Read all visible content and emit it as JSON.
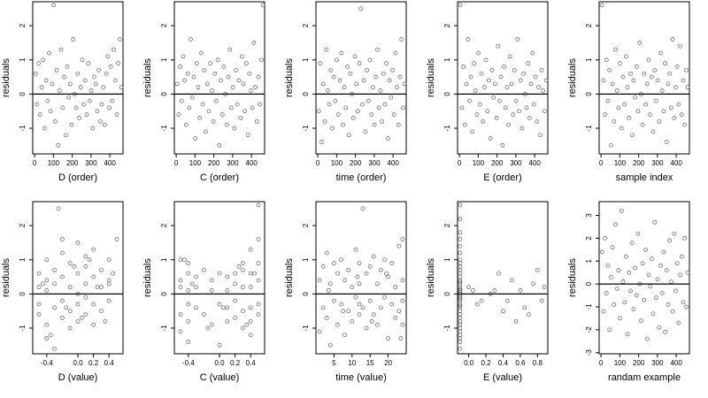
{
  "figure": {
    "background": "#ffffff",
    "point_color": "#555555",
    "axis_color": "#000000"
  },
  "chart_data": [
    {
      "type": "scatter",
      "xlabel": "D (order)",
      "ylabel": "residuals",
      "xlim": [
        -10,
        470
      ],
      "ylim": [
        -1.75,
        2.7
      ],
      "xticks": [
        0,
        100,
        200,
        300,
        400
      ],
      "yticks": [
        -1,
        0,
        1,
        2
      ],
      "hline": 0,
      "x": [
        5,
        13,
        21,
        29,
        37,
        45,
        53,
        61,
        69,
        77,
        85,
        93,
        101,
        109,
        117,
        125,
        133,
        141,
        149,
        157,
        165,
        173,
        181,
        189,
        197,
        205,
        213,
        221,
        229,
        237,
        245,
        253,
        261,
        269,
        277,
        285,
        293,
        301,
        309,
        317,
        325,
        333,
        341,
        349,
        357,
        365,
        373,
        381,
        389,
        397,
        405,
        413,
        421,
        429,
        437,
        445,
        453,
        461
      ],
      "y": [
        0.6,
        -0.3,
        0.9,
        -0.6,
        0.2,
        1.0,
        -1.0,
        0.4,
        -0.2,
        1.2,
        -0.5,
        0.3,
        2.6,
        -0.8,
        0.7,
        -1.5,
        0.1,
        1.3,
        -0.4,
        0.5,
        -1.2,
        0.8,
        -0.1,
        0.3,
        -0.9,
        1.6,
        0.0,
        -0.4,
        0.6,
        -0.7,
        0.2,
        1.0,
        -0.3,
        0.4,
        -0.6,
        0.9,
        -0.2,
        0.1,
        -1.0,
        0.5,
        0.3,
        -0.5,
        0.7,
        -0.8,
        -0.3,
        0.2,
        -0.9,
        0.6,
        1.1,
        -0.4,
        0.8,
        -0.2,
        1.3,
        0.4,
        -0.6,
        0.9,
        1.6,
        0.2
      ]
    },
    {
      "type": "scatter",
      "xlabel": "C (order)",
      "ylabel": "residuals",
      "xlim": [
        -10,
        470
      ],
      "ylim": [
        -1.75,
        2.7
      ],
      "xticks": [
        0,
        100,
        200,
        300,
        400
      ],
      "yticks": [
        -1,
        0,
        1,
        2
      ],
      "hline": 0,
      "x": [
        5,
        13,
        21,
        29,
        37,
        45,
        53,
        61,
        69,
        77,
        85,
        93,
        101,
        109,
        117,
        125,
        133,
        141,
        149,
        157,
        165,
        173,
        181,
        189,
        197,
        205,
        213,
        221,
        229,
        237,
        245,
        253,
        261,
        269,
        277,
        285,
        293,
        301,
        309,
        317,
        325,
        333,
        341,
        349,
        357,
        365,
        373,
        381,
        389,
        397,
        405,
        413,
        421,
        429,
        437,
        445,
        453,
        461
      ],
      "y": [
        0.3,
        -0.6,
        0.8,
        -0.2,
        1.1,
        0.4,
        -0.9,
        0.6,
        -0.4,
        1.6,
        -0.1,
        0.5,
        -1.3,
        0.9,
        0.2,
        -0.7,
        1.2,
        -0.3,
        0.7,
        -1.1,
        0.3,
        -0.5,
        0.9,
        0.1,
        -0.8,
        0.6,
        -0.2,
        1.0,
        -1.5,
        0.4,
        -0.6,
        0.8,
        0.0,
        -0.9,
        0.5,
        1.3,
        -0.4,
        0.2,
        -1.0,
        0.7,
        -0.3,
        0.4,
        -0.7,
        1.1,
        0.3,
        -0.5,
        0.9,
        -1.2,
        0.6,
        0.1,
        -0.4,
        1.5,
        0.2,
        -0.8,
        0.5,
        -0.3,
        1.0,
        2.6
      ]
    },
    {
      "type": "scatter",
      "xlabel": "time (order)",
      "ylabel": "residuals",
      "xlim": [
        -10,
        470
      ],
      "ylim": [
        -1.75,
        2.7
      ],
      "xticks": [
        0,
        100,
        200,
        300,
        400
      ],
      "yticks": [
        -1,
        0,
        1,
        2
      ],
      "hline": 0,
      "x": [
        5,
        13,
        21,
        29,
        37,
        45,
        53,
        61,
        69,
        77,
        85,
        93,
        101,
        109,
        117,
        125,
        133,
        141,
        149,
        157,
        165,
        173,
        181,
        189,
        197,
        205,
        213,
        221,
        229,
        237,
        245,
        253,
        261,
        269,
        277,
        285,
        293,
        301,
        309,
        317,
        325,
        333,
        341,
        349,
        357,
        365,
        373,
        381,
        389,
        397,
        405,
        413,
        421,
        429,
        437,
        445,
        453,
        461
      ],
      "y": [
        -0.5,
        0.9,
        -1.4,
        0.3,
        -0.8,
        1.3,
        0.1,
        -0.3,
        0.7,
        -1.0,
        0.5,
        -0.2,
        1.0,
        -0.6,
        0.4,
        1.2,
        -0.9,
        0.2,
        -0.4,
        0.8,
        -1.2,
        0.6,
        0.0,
        -0.7,
        1.1,
        0.3,
        -0.5,
        0.9,
        2.5,
        -0.3,
        0.4,
        -1.1,
        0.7,
        -0.2,
        1.0,
        -0.6,
        0.2,
        -0.9,
        0.5,
        1.3,
        -0.4,
        0.1,
        -0.8,
        0.6,
        -0.3,
        0.9,
        -1.3,
        0.4,
        -0.1,
        0.7,
        -0.6,
        1.2,
        0.2,
        -0.9,
        0.5,
        1.6,
        -0.4,
        0.3
      ]
    },
    {
      "type": "scatter",
      "xlabel": "E (order)",
      "ylabel": "residuals",
      "xlim": [
        -10,
        470
      ],
      "ylim": [
        -1.75,
        2.7
      ],
      "xticks": [
        0,
        100,
        200,
        300,
        400
      ],
      "yticks": [
        -1,
        0,
        1,
        2
      ],
      "hline": 0,
      "x": [
        5,
        13,
        21,
        29,
        37,
        45,
        53,
        61,
        69,
        77,
        85,
        93,
        101,
        109,
        117,
        125,
        133,
        141,
        149,
        157,
        165,
        173,
        181,
        189,
        197,
        205,
        213,
        221,
        229,
        237,
        245,
        253,
        261,
        269,
        277,
        285,
        293,
        301,
        309,
        317,
        325,
        333,
        341,
        349,
        357,
        365,
        373,
        381,
        389,
        397,
        405,
        413,
        421,
        429,
        437,
        445,
        453,
        461
      ],
      "y": [
        2.6,
        -0.4,
        0.8,
        -0.9,
        0.3,
        1.6,
        -0.2,
        0.5,
        -1.1,
        0.9,
        0.1,
        -0.6,
        1.2,
        -0.3,
        0.6,
        -0.8,
        0.2,
        1.0,
        -0.5,
        0.4,
        -1.3,
        0.7,
        -0.1,
        0.3,
        -0.7,
        1.4,
        -0.2,
        0.5,
        -1.5,
        0.8,
        -0.4,
        0.2,
        -0.9,
        1.1,
        0.3,
        -0.6,
        0.7,
        -0.2,
        1.6,
        -0.5,
        0.4,
        -1.0,
        0.6,
        0.0,
        -0.4,
        0.9,
        -0.7,
        0.3,
        1.2,
        -0.3,
        0.5,
        -0.8,
        0.2,
        -1.2,
        0.7,
        0.1,
        -0.5,
        0.4
      ]
    },
    {
      "type": "scatter",
      "xlabel": "sample index",
      "ylabel": "residuals",
      "xlim": [
        -10,
        470
      ],
      "ylim": [
        -1.75,
        2.7
      ],
      "xticks": [
        0,
        100,
        200,
        300,
        400
      ],
      "yticks": [
        -1,
        0,
        1,
        2
      ],
      "hline": 0,
      "x": [
        5,
        13,
        21,
        29,
        37,
        45,
        53,
        61,
        69,
        77,
        85,
        93,
        101,
        109,
        117,
        125,
        133,
        141,
        149,
        157,
        165,
        173,
        181,
        189,
        197,
        205,
        213,
        221,
        229,
        237,
        245,
        253,
        261,
        269,
        277,
        285,
        293,
        301,
        309,
        317,
        325,
        333,
        341,
        349,
        357,
        365,
        373,
        381,
        389,
        397,
        405,
        413,
        421,
        429,
        437,
        445,
        453,
        461
      ],
      "y": [
        2.6,
        0.4,
        -0.6,
        1.0,
        -0.2,
        0.7,
        -1.5,
        0.3,
        -0.8,
        1.3,
        0.1,
        -0.4,
        0.9,
        -1.0,
        0.5,
        -0.3,
        1.1,
        0.2,
        -0.7,
        0.6,
        -1.2,
        0.4,
        -0.1,
        0.8,
        -0.5,
        1.5,
        0.0,
        -0.9,
        0.6,
        -0.3,
        0.3,
        1.0,
        -0.6,
        0.5,
        -1.1,
        0.7,
        -0.2,
        0.4,
        -0.8,
        1.2,
        0.1,
        -0.5,
        0.9,
        -1.4,
        0.3,
        0.6,
        -0.4,
        1.6,
        -0.7,
        0.2,
        0.8,
        -0.3,
        1.4,
        -0.6,
        0.4,
        -0.9,
        0.7,
        0.2
      ]
    },
    {
      "type": "scatter",
      "xlabel": "D (value)",
      "ylabel": "residuals",
      "xlim": [
        -0.58,
        0.58
      ],
      "ylim": [
        -1.75,
        2.7
      ],
      "xticks": [
        -0.4,
        0.0,
        0.2,
        0.4
      ],
      "xticklabels": [
        "-0.4",
        "0.0",
        "0.2",
        "0.4"
      ],
      "yticks": [
        -1,
        0,
        1,
        2
      ],
      "hline": 0,
      "x": [
        -0.5,
        -0.5,
        -0.5,
        -0.5,
        -0.4,
        -0.4,
        -0.4,
        -0.4,
        -0.4,
        -0.3,
        -0.3,
        -0.3,
        -0.3,
        -0.2,
        -0.2,
        -0.2,
        -0.2,
        -0.2,
        -0.1,
        -0.1,
        -0.1,
        -0.1,
        0.0,
        0.0,
        0.0,
        0.0,
        0.0,
        0.1,
        0.1,
        0.1,
        0.1,
        0.1,
        0.2,
        0.2,
        0.2,
        0.2,
        0.3,
        0.3,
        0.3,
        0.4,
        0.4,
        0.4,
        0.4,
        0.5,
        -0.45,
        -0.35,
        -0.25,
        -0.15,
        -0.05,
        0.05,
        0.15,
        0.25,
        0.35,
        0.45
      ],
      "y": [
        0.6,
        -0.3,
        0.2,
        -0.6,
        1.0,
        -0.9,
        0.4,
        -1.3,
        0.1,
        0.7,
        -0.4,
        -1.6,
        0.3,
        1.2,
        -0.7,
        0.5,
        -0.2,
        1.6,
        0.9,
        -0.5,
        0.2,
        -1.0,
        0.6,
        -0.3,
        1.5,
        -0.8,
        0.0,
        0.8,
        -0.6,
        0.3,
        -0.1,
        1.1,
        0.5,
        -0.9,
        -0.3,
        1.3,
        0.7,
        -0.5,
        0.2,
        0.4,
        -0.2,
        1.0,
        0.3,
        1.6,
        0.3,
        -1.2,
        2.5,
        -0.4,
        0.8,
        -0.7,
        1.0,
        0.2,
        -0.8,
        0.6
      ]
    },
    {
      "type": "scatter",
      "xlabel": "C (value)",
      "ylabel": "residuals",
      "xlim": [
        -0.58,
        0.58
      ],
      "ylim": [
        -1.75,
        2.7
      ],
      "xticks": [
        -0.4,
        0.0,
        0.2,
        0.4
      ],
      "xticklabels": [
        "-0.4",
        "0.0",
        "0.2",
        "0.4"
      ],
      "yticks": [
        -1,
        0,
        1,
        2
      ],
      "hline": 0,
      "x": [
        -0.5,
        -0.5,
        -0.5,
        -0.5,
        -0.5,
        -0.4,
        -0.4,
        -0.4,
        -0.4,
        -0.4,
        -0.4,
        -0.3,
        -0.3,
        -0.3,
        -0.2,
        -0.2,
        -0.1,
        -0.1,
        -0.1,
        0.0,
        0.0,
        0.0,
        0.1,
        0.1,
        0.1,
        0.1,
        0.2,
        0.2,
        0.2,
        0.2,
        0.3,
        0.3,
        0.3,
        0.3,
        0.3,
        0.4,
        0.4,
        0.4,
        0.4,
        0.4,
        0.4,
        0.5,
        0.5,
        0.5,
        0.5,
        0.5,
        -0.45,
        -0.35,
        -0.15,
        0.05,
        0.25,
        0.35,
        0.45,
        0.5
      ],
      "y": [
        1.0,
        -0.6,
        0.4,
        -1.1,
        0.2,
        0.9,
        -0.3,
        0.6,
        -1.4,
        0.1,
        -0.8,
        0.5,
        -0.4,
        0.2,
        0.7,
        -0.6,
        0.4,
        -0.9,
        0.1,
        0.6,
        -0.3,
        -1.5,
        0.5,
        -0.4,
        0.1,
        -0.8,
        0.6,
        -0.2,
        0.3,
        -0.7,
        0.9,
        -0.5,
        0.2,
        -1.0,
        0.7,
        1.3,
        -0.4,
        0.6,
        -0.8,
        0.2,
        -1.2,
        1.6,
        -0.3,
        0.4,
        0.9,
        -0.6,
        1.0,
        0.3,
        -1.0,
        -0.4,
        0.8,
        -0.9,
        0.6,
        2.6
      ]
    },
    {
      "type": "scatter",
      "xlabel": "time (value)",
      "ylabel": "residuals",
      "xlim": [
        0,
        25
      ],
      "ylim": [
        -1.75,
        2.7
      ],
      "xticks": [
        5,
        10,
        15,
        20
      ],
      "yticks": [
        -1,
        0,
        1,
        2
      ],
      "hline": 0,
      "x": [
        1,
        1,
        2,
        2,
        3,
        3,
        4,
        4,
        5,
        5,
        6,
        6,
        7,
        7,
        8,
        8,
        9,
        9,
        10,
        10,
        11,
        11,
        12,
        12,
        12,
        12,
        13,
        13,
        14,
        14,
        15,
        15,
        16,
        16,
        17,
        17,
        18,
        18,
        19,
        19,
        20,
        20,
        21,
        21,
        22,
        22,
        23,
        23,
        24,
        24,
        24,
        24,
        3.5,
        7.5,
        11.5,
        15.5,
        19.5,
        23.5
      ],
      "y": [
        0.4,
        -1.1,
        0.8,
        -0.4,
        1.2,
        -0.7,
        0.3,
        -1.5,
        0.9,
        -0.2,
        0.6,
        -0.9,
        1.0,
        -0.3,
        0.4,
        -1.2,
        0.7,
        -0.5,
        0.2,
        -0.8,
        1.3,
        -0.1,
        0.9,
        -0.6,
        0.3,
        -0.3,
        2.5,
        -0.4,
        0.6,
        -1.0,
        0.8,
        -0.2,
        1.1,
        -0.6,
        0.3,
        -0.9,
        0.7,
        -0.4,
        1.0,
        -0.1,
        0.5,
        -1.3,
        0.9,
        -0.3,
        0.2,
        -0.7,
        1.4,
        -0.5,
        1.6,
        -0.9,
        0.4,
        -0.2,
        0.1,
        -0.5,
        0.5,
        -0.8,
        0.6,
        -1.3
      ]
    },
    {
      "type": "scatter",
      "xlabel": "E (value)",
      "ylabel": "residuals",
      "xlim": [
        -0.13,
        0.92
      ],
      "ylim": [
        -1.75,
        2.7
      ],
      "xticks": [
        0.0,
        0.2,
        0.4,
        0.6,
        0.8
      ],
      "xticklabels": [
        "0.0",
        "0.2",
        "0.4",
        "0.6",
        "0.8"
      ],
      "yticks": [
        -1,
        0,
        1,
        2
      ],
      "hline": 0,
      "x": [
        -0.1,
        -0.1,
        -0.1,
        -0.1,
        -0.1,
        -0.1,
        -0.1,
        -0.1,
        -0.1,
        -0.1,
        -0.1,
        -0.1,
        -0.1,
        -0.1,
        -0.1,
        -0.1,
        -0.1,
        -0.1,
        -0.1,
        -0.1,
        -0.1,
        -0.1,
        -0.1,
        -0.1,
        -0.1,
        -0.1,
        -0.1,
        -0.1,
        -0.1,
        -0.1,
        -0.1,
        -0.1,
        -0.1,
        -0.1,
        -0.1,
        -0.1,
        -0.1,
        -0.1,
        0.0,
        0.05,
        0.1,
        0.15,
        0.25,
        0.3,
        0.35,
        0.4,
        0.45,
        0.5,
        0.55,
        0.6,
        0.65,
        0.7,
        0.75,
        0.8,
        0.85,
        0.88
      ],
      "y": [
        2.6,
        2.2,
        1.8,
        1.6,
        1.4,
        1.2,
        1.0,
        0.9,
        0.8,
        0.7,
        0.6,
        0.5,
        0.4,
        0.3,
        0.2,
        0.1,
        0.05,
        0.0,
        -0.05,
        -0.1,
        -0.2,
        -0.3,
        -0.4,
        -0.5,
        -0.6,
        -0.7,
        -0.8,
        -0.9,
        -1.0,
        -1.1,
        -1.2,
        -1.3,
        -1.4,
        -1.6,
        0.35,
        -0.35,
        0.15,
        -0.15,
        0.2,
        0.1,
        -0.3,
        -0.2,
        0.0,
        0.1,
        0.6,
        -0.5,
        -0.2,
        0.4,
        -0.8,
        0.1,
        -0.4,
        -0.6,
        0.3,
        0.7,
        -0.2,
        0.2
      ]
    },
    {
      "type": "scatter",
      "xlabel": "randam example",
      "ylabel": "residuals",
      "xlim": [
        -10,
        470
      ],
      "ylim": [
        -3.05,
        3.6
      ],
      "xticks": [
        0,
        100,
        200,
        300,
        400
      ],
      "yticks": [
        -3,
        -2,
        -1,
        0,
        1,
        2,
        3
      ],
      "hline": 0,
      "x": [
        5,
        13,
        21,
        29,
        37,
        45,
        53,
        61,
        69,
        77,
        85,
        93,
        101,
        109,
        117,
        125,
        133,
        141,
        149,
        157,
        165,
        173,
        181,
        189,
        197,
        205,
        213,
        221,
        229,
        237,
        245,
        253,
        261,
        269,
        277,
        285,
        293,
        301,
        309,
        317,
        325,
        333,
        341,
        349,
        357,
        365,
        373,
        381,
        389,
        397,
        405,
        413,
        421,
        429,
        437,
        445,
        453,
        461
      ],
      "y": [
        1.4,
        -1.2,
        2.0,
        -0.4,
        0.8,
        -2.0,
        0.3,
        1.6,
        -0.9,
        2.6,
        -0.2,
        0.6,
        -1.5,
        3.2,
        0.1,
        -0.8,
        1.2,
        -2.2,
        0.5,
        -0.3,
        1.8,
        -1.1,
        0.7,
        -0.5,
        2.2,
        0.0,
        -1.6,
        0.9,
        -0.7,
        1.5,
        -2.4,
        0.4,
        -0.1,
        1.1,
        -1.3,
        2.7,
        -0.6,
        0.2,
        -1.9,
        0.8,
        -0.4,
        1.4,
        -2.1,
        0.6,
        -0.9,
        1.9,
        0.1,
        -1.2,
        2.2,
        -0.3,
        0.9,
        -1.7,
        0.4,
        1.2,
        -0.8,
        2.0,
        -1.0,
        0.5
      ]
    }
  ]
}
